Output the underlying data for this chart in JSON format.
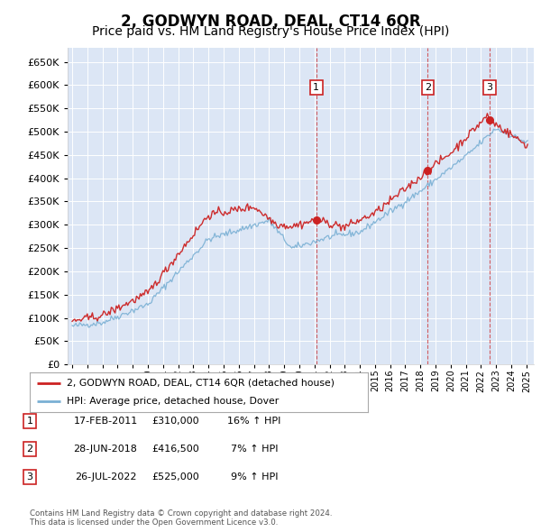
{
  "title": "2, GODWYN ROAD, DEAL, CT14 6QR",
  "subtitle": "Price paid vs. HM Land Registry's House Price Index (HPI)",
  "ylim": [
    0,
    680000
  ],
  "yticks": [
    0,
    50000,
    100000,
    150000,
    200000,
    250000,
    300000,
    350000,
    400000,
    450000,
    500000,
    550000,
    600000,
    650000
  ],
  "plot_background": "#dce6f5",
  "legend_entries": [
    "2, GODWYN ROAD, DEAL, CT14 6QR (detached house)",
    "HPI: Average price, detached house, Dover"
  ],
  "legend_colors": [
    "#cc2222",
    "#7ab0d4"
  ],
  "transaction_labels": [
    "1",
    "2",
    "3"
  ],
  "transaction_dates": [
    "17-FEB-2011",
    "28-JUN-2018",
    "26-JUL-2022"
  ],
  "transaction_prices": [
    "£310,000",
    "£416,500",
    "£525,000"
  ],
  "transaction_hpi": [
    "16% ↑ HPI",
    "7% ↑ HPI",
    "9% ↑ HPI"
  ],
  "footer": "Contains HM Land Registry data © Crown copyright and database right 2024.\nThis data is licensed under the Open Government Licence v3.0.",
  "sale1_year": 2011.12,
  "sale1_price": 310000,
  "sale2_year": 2018.49,
  "sale2_price": 416500,
  "sale3_year": 2022.56,
  "sale3_price": 525000,
  "vline_color": "#cc2222",
  "grid_color": "#ffffff",
  "title_fontsize": 12,
  "subtitle_fontsize": 10
}
